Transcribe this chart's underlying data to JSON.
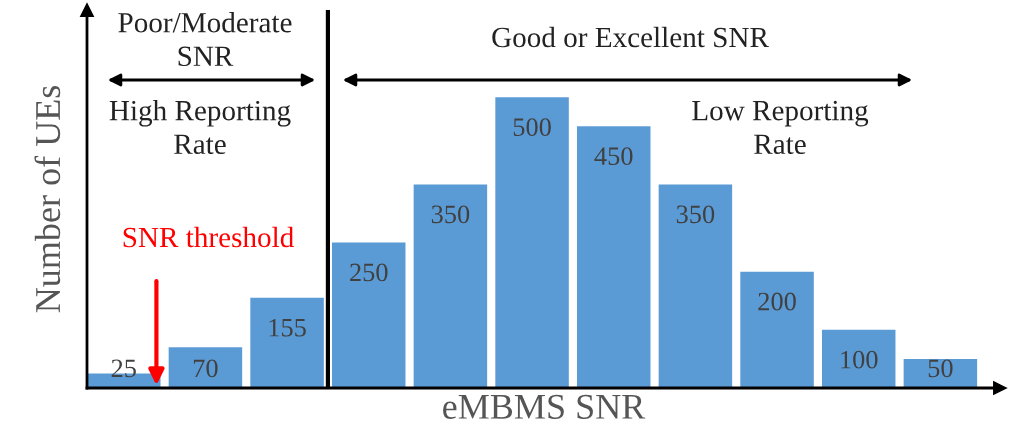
{
  "chart_data": {
    "type": "bar",
    "xlabel": "eMBMS SNR",
    "ylabel": "Number of UEs",
    "categories": [
      null,
      null,
      null,
      null,
      null,
      null,
      null,
      null,
      null,
      null,
      null
    ],
    "values": [
      25,
      70,
      155,
      250,
      350,
      500,
      450,
      350,
      200,
      100,
      50
    ],
    "color": "#5b9bd5",
    "data_labels": true,
    "ylim": [
      0,
      650
    ],
    "tick_labels": false,
    "annotations": [
      "Poor/Moderate\nSNR",
      "Good or Excellent SNR",
      "High Reporting\nRate",
      "Low Reporting\nRate",
      "SNR threshold"
    ]
  }
}
